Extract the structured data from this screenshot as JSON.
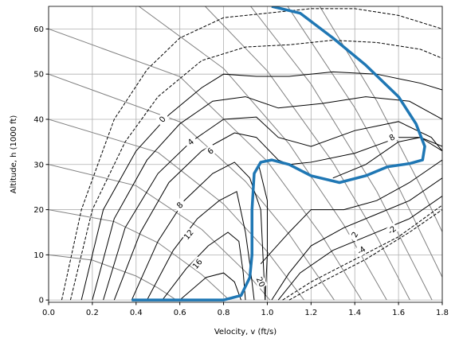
{
  "chart_data": {
    "type": "contour",
    "xlabel": "Velocity, v (ft/s)",
    "ylabel": "Altitude, h (1000 ft)",
    "xlim": [
      0,
      1.8
    ],
    "ylim": [
      -0.5,
      65
    ],
    "xticks": [
      {
        "value": 0,
        "label": "0.0"
      },
      0.2,
      0.4,
      0.6,
      0.8,
      {
        "value": 1,
        "label": "1.0"
      },
      1.2,
      1.4,
      1.6,
      1.8
    ],
    "yticks": [
      0,
      10,
      20,
      30,
      40,
      50,
      60
    ],
    "grid": true,
    "energy_lines": {
      "color": "#808080",
      "lines": [
        {
          "x": [
            0,
            0.2,
            0.4,
            0.5,
            0.584
          ],
          "y": [
            10,
            8.83,
            5.31,
            2.68,
            0
          ]
        },
        {
          "x": [
            0,
            0.3,
            0.5,
            0.7,
            0.826
          ],
          "y": [
            20,
            17.36,
            12.68,
            5.64,
            0
          ]
        },
        {
          "x": [
            0,
            0.4,
            0.7,
            0.9,
            1.012
          ],
          "y": [
            30,
            25.31,
            15.64,
            6.27,
            0
          ]
        },
        {
          "x": [
            0,
            0.5,
            0.8,
            1.0,
            1.168
          ],
          "y": [
            40,
            32.68,
            21.25,
            10.7,
            0
          ]
        },
        {
          "x": [
            0,
            0.6,
            0.9,
            1.1,
            1.306
          ],
          "y": [
            50,
            39.45,
            26.27,
            14.55,
            0
          ]
        },
        {
          "x": [
            0,
            0.6,
            1.0,
            1.25,
            1.431
          ],
          "y": [
            60,
            49.45,
            30.7,
            14.22,
            0
          ]
        },
        {
          "x": [
            0.413,
            0.8,
            1.1,
            1.35,
            1.546
          ],
          "y": [
            65,
            51.25,
            34.55,
            16.6,
            0
          ]
        },
        {
          "x": [
            0.716,
            1.0,
            1.3,
            1.5,
            1.652
          ],
          "y": [
            65,
            50.7,
            30.48,
            14.08,
            0
          ]
        },
        {
          "x": [
            0.924,
            1.2,
            1.5,
            1.753
          ],
          "y": [
            65,
            47.8,
            24.1,
            0
          ]
        },
        {
          "x": [
            1.093,
            1.4,
            1.6,
            1.8
          ],
          "y": [
            65,
            42.57,
            25,
            5.07
          ]
        },
        {
          "x": [
            1.24,
            1.5,
            1.7,
            1.8
          ],
          "y": [
            65,
            44.1,
            25.3,
            15.07
          ]
        }
      ]
    },
    "contours": {
      "color": "#000000",
      "lines": [
        {
          "style": "dashed",
          "x": [
            0.06,
            0.15,
            0.3,
            0.45,
            0.6,
            0.8,
            1.0,
            1.2,
            1.4,
            1.6,
            1.8
          ],
          "y": [
            0,
            20,
            40,
            51,
            58,
            62.5,
            63.5,
            64.5,
            64.5,
            63,
            60
          ]
        },
        {
          "style": "dashed",
          "x": [
            0.1,
            0.2,
            0.35,
            0.5,
            0.7,
            0.9,
            1.1,
            1.3,
            1.5,
            1.7,
            1.8
          ],
          "y": [
            0,
            20,
            35,
            45,
            53,
            56,
            56.5,
            57.5,
            57,
            55.5,
            53.5
          ]
        },
        {
          "style": "solid",
          "x": [
            0.15,
            0.25,
            0.4,
            0.55,
            0.7,
            0.8,
            0.95,
            1.1,
            1.3,
            1.5,
            1.7,
            1.8
          ],
          "y": [
            0,
            20,
            33,
            41,
            47,
            50,
            49.5,
            49.5,
            50.5,
            50,
            48,
            46.5
          ]
        },
        {
          "style": "solid",
          "x": [
            0.2,
            0.3,
            0.45,
            0.6,
            0.75,
            0.9,
            1.05,
            1.25,
            1.45,
            1.65,
            1.8
          ],
          "y": [
            0,
            18,
            31,
            39,
            44,
            45,
            42.5,
            43.5,
            45,
            44,
            40
          ]
        },
        {
          "style": "solid",
          "x": [
            0.25,
            0.35,
            0.5,
            0.65,
            0.8,
            0.95,
            1.05,
            1.2,
            1.4,
            1.6,
            1.75,
            1.8
          ],
          "y": [
            0,
            16,
            28,
            35,
            40,
            40.5,
            36,
            34,
            37.5,
            39.5,
            36,
            33
          ]
        },
        {
          "style": "solid",
          "x": [
            0.3,
            0.42,
            0.55,
            0.7,
            0.85,
            0.95,
            1.05,
            1.1,
            1.2,
            1.4,
            1.6,
            1.7,
            1.8
          ],
          "y": [
            0,
            15,
            26,
            33,
            37,
            36,
            31,
            30,
            30.5,
            32.5,
            36,
            36,
            33
          ]
        },
        {
          "style": "solid",
          "x": [
            0.38,
            0.5,
            0.62,
            0.75,
            0.85,
            0.92,
            0.97,
            0.98,
            0.99
          ],
          "y": [
            0,
            13,
            22,
            28,
            30.5,
            27,
            20,
            10,
            0
          ]
        },
        {
          "style": "solid",
          "x": [
            0.45,
            0.57,
            0.68,
            0.78,
            0.86,
            0.9,
            0.92,
            0.94
          ],
          "y": [
            0,
            11,
            18,
            22,
            24,
            15,
            8,
            0
          ]
        },
        {
          "style": "solid",
          "x": [
            0.52,
            0.63,
            0.73,
            0.82,
            0.87,
            0.89,
            0.9
          ],
          "y": [
            0,
            7,
            12,
            15,
            13,
            6,
            0
          ]
        },
        {
          "style": "solid",
          "x": [
            0.6,
            0.72,
            0.8,
            0.85,
            0.88
          ],
          "y": [
            0,
            5,
            6,
            4,
            0
          ]
        },
        {
          "style": "solid",
          "x": [
            0.96,
            1.0,
            1.0,
            0.99
          ],
          "y": [
            30,
            22,
            10,
            0
          ]
        },
        {
          "style": "solid",
          "x": [
            0.97,
            1.1,
            1.2,
            1.35,
            1.5,
            1.65,
            1.8
          ],
          "y": [
            8,
            15,
            20,
            20,
            22,
            26,
            31
          ]
        },
        {
          "style": "solid",
          "x": [
            1.3,
            1.45,
            1.6,
            1.7,
            1.8
          ],
          "y": [
            27,
            30,
            35,
            36,
            34
          ]
        },
        {
          "style": "solid",
          "x": [
            1.02,
            1.1,
            1.2,
            1.35,
            1.5,
            1.65,
            1.8
          ],
          "y": [
            0,
            6,
            12,
            16,
            19,
            22,
            27
          ]
        },
        {
          "style": "solid",
          "x": [
            1.05,
            1.15,
            1.3,
            1.5,
            1.65,
            1.8
          ],
          "y": [
            0,
            6,
            11,
            15,
            18,
            23
          ]
        },
        {
          "style": "dashed",
          "x": [
            1.07,
            1.2,
            1.4,
            1.6,
            1.8
          ],
          "y": [
            0,
            4,
            9,
            14,
            21
          ]
        },
        {
          "style": "dashed",
          "x": [
            1.1,
            1.25,
            1.45,
            1.65,
            1.8
          ],
          "y": [
            0,
            4,
            9,
            15,
            20
          ]
        }
      ]
    },
    "contour_labels": [
      {
        "text": "0",
        "x": 0.52,
        "y": 40
      },
      {
        "text": "4",
        "x": 0.65,
        "y": 35
      },
      {
        "text": "6",
        "x": 0.74,
        "y": 33
      },
      {
        "text": "8",
        "x": 0.6,
        "y": 21
      },
      {
        "text": "12",
        "x": 0.64,
        "y": 14.5
      },
      {
        "text": "16",
        "x": 0.68,
        "y": 8
      },
      {
        "text": "20",
        "x": 0.97,
        "y": 4
      },
      {
        "text": "8",
        "x": 1.57,
        "y": 36
      },
      {
        "text": "2",
        "x": 1.4,
        "y": 14.5
      },
      {
        "text": "-2",
        "x": 1.57,
        "y": 15.5
      },
      {
        "text": "-4",
        "x": 1.43,
        "y": 11
      }
    ],
    "series": [
      {
        "color": "#1f77b4",
        "x": [
          0.38,
          0.6,
          0.8,
          0.88,
          0.92,
          0.93,
          0.93,
          0.94,
          0.97,
          1.02,
          1.1,
          1.2,
          1.33,
          1.45,
          1.55,
          1.65,
          1.71,
          1.72,
          1.68,
          1.6,
          1.45,
          1.3,
          1.15,
          1.02
        ],
        "y": [
          0,
          0,
          0,
          1,
          5,
          10,
          20,
          28,
          30.5,
          31,
          30,
          27.5,
          26,
          27.5,
          29.5,
          30.2,
          31,
          34,
          39,
          45,
          52,
          58,
          63.5,
          65
        ]
      }
    ]
  }
}
